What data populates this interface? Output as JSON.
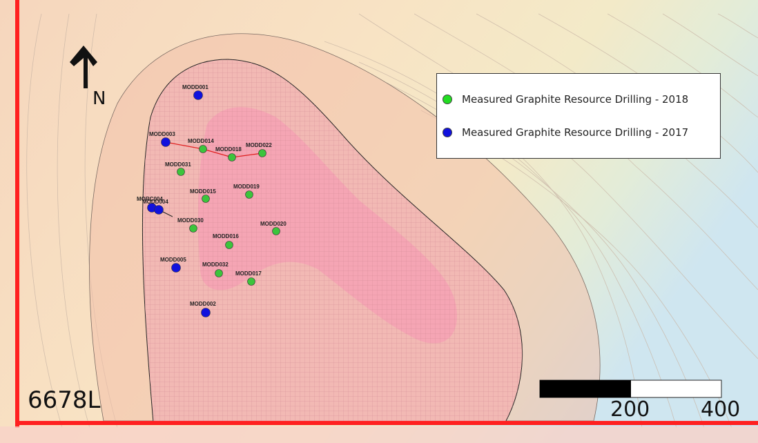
{
  "map": {
    "north_label": "N",
    "section_label": "6678L",
    "legend": {
      "items": [
        {
          "label": "Measured Graphite Resource Drilling - 2018",
          "color": "#22dd22"
        },
        {
          "label": "Measured Graphite Resource Drilling - 2017",
          "color": "#1111dd"
        }
      ]
    },
    "scale_bar": {
      "ticks": [
        "200",
        "400"
      ]
    },
    "drill_holes_2017": [
      "MODD001",
      "MODD003",
      "MORC004",
      "MODD004",
      "MODD005",
      "MODD002"
    ],
    "drill_holes_2018": [
      "MODD014",
      "MODD018",
      "MODD022",
      "MODD031",
      "MODD015",
      "MODD019",
      "MODD030",
      "MODD020",
      "MODD016",
      "MODD032",
      "MODD017"
    ],
    "colors": {
      "boundary_red": "#ff2020",
      "accent_pink": "#f5a0b4"
    }
  }
}
